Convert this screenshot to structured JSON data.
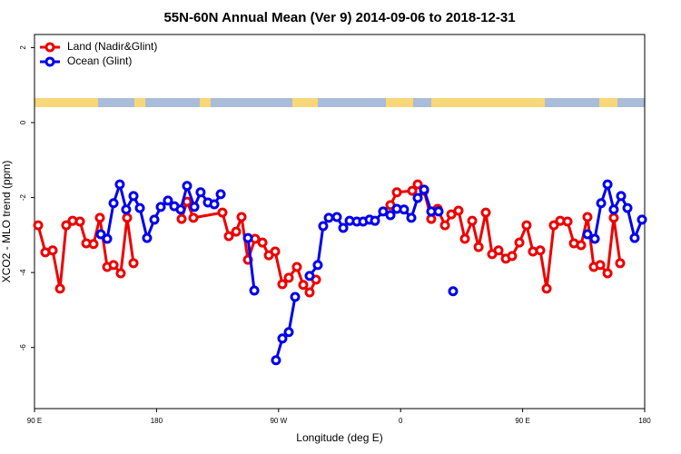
{
  "chart_data": {
    "type": "line",
    "title": "55N-60N Annual Mean (Ver 9)   2014-09-06 to 2018-12-31",
    "x_label": "Longitude (deg E)",
    "y_label": "XCO2 - MLO trend (ppm)",
    "xlim": [
      90,
      540
    ],
    "ylim": [
      -7.63,
      2.35
    ],
    "xticks": [
      {
        "value": 90,
        "label": "90 E"
      },
      180,
      {
        "value": 270,
        "label": "90 W"
      },
      {
        "value": 360,
        "label": "0"
      },
      {
        "value": 450,
        "label": "90 E"
      },
      {
        "value": 540,
        "label": "180"
      }
    ],
    "yticks": [
      -6,
      -4,
      -2,
      0,
      2
    ],
    "grid": false,
    "legend": "top-left",
    "series": [
      {
        "name": "Land (Nadir&Glint)",
        "color": "#ee0000",
        "x": [
          92.7,
          98.0,
          103.4,
          108.8,
          113.4,
          118.1,
          123.5,
          128.2,
          133.5,
          138.2,
          143.6,
          148.3,
          153.6,
          158.3,
          163.0,
          null,
          198.5,
          202.5,
          207.2,
          228.6,
          233.3,
          238.7,
          242.7,
          247.4,
          252.7,
          258.1,
          262.8,
          267.5,
          272.8,
          277.5,
          283.5,
          288.2,
          292.9,
          297.6,
          null,
          352.5,
          357.2,
          368.6,
          372.6,
          377.3,
          382.6,
          387.3,
          392.7,
          397.4,
          402.7,
          407.4,
          412.8,
          417.5,
          422.8,
          427.5,
          432.2,
          437.6,
          442.2,
          447.6,
          452.9,
          457.6,
          463.0,
          467.7,
          473.0,
          477.7,
          483.1,
          487.8,
          493.1,
          497.8,
          502.5,
          507.2,
          512.6,
          517.2,
          521.9
        ],
        "values": [
          -2.74,
          -3.46,
          -3.41,
          -4.43,
          -2.74,
          -2.62,
          -2.64,
          -3.22,
          -3.24,
          -2.54,
          -3.85,
          -3.8,
          -4.02,
          -2.54,
          -3.75,
          null,
          -2.57,
          -2.11,
          -2.54,
          -2.4,
          -3.03,
          -2.91,
          -2.52,
          -3.66,
          -3.1,
          -3.2,
          -3.54,
          -3.44,
          -4.31,
          -4.14,
          -3.85,
          -4.33,
          -4.53,
          -4.19,
          null,
          -2.2,
          -1.86,
          -1.82,
          -1.65,
          -1.82,
          -2.57,
          -2.3,
          -2.74,
          -2.45,
          -2.35,
          -3.1,
          -2.62,
          -3.32,
          -2.4,
          -3.51,
          -3.41,
          -3.63,
          -3.56,
          -3.2,
          -2.74,
          -3.44,
          -3.41,
          -4.43,
          -2.74,
          -2.62,
          -2.64,
          -3.22,
          -3.27,
          -2.52,
          -3.85,
          -3.8,
          -4.02,
          -2.54,
          -3.75
        ]
      },
      {
        "name": "Ocean (Glint)",
        "color": "#0000ee",
        "x": [
          138.9,
          143.6,
          148.3,
          152.9,
          157.6,
          163.0,
          167.7,
          173.0,
          178.4,
          183.1,
          188.4,
          193.1,
          197.8,
          202.5,
          207.9,
          212.5,
          217.9,
          222.6,
          227.3,
          null,
          247.4,
          252.1,
          null,
          268.1,
          272.8,
          277.5,
          282.2,
          null,
          292.9,
          298.9,
          302.9,
          307.0,
          313.0,
          317.7,
          322.4,
          327.7,
          332.4,
          337.1,
          341.1,
          347.1,
          352.5,
          357.2,
          362.5,
          367.9,
          372.6,
          377.3,
          382.6,
          388.0,
          null,
          398.7,
          null,
          497.8,
          503.2,
          507.9,
          512.6,
          517.2,
          522.6,
          527.3,
          532.6,
          538.0
        ],
        "values": [
          -2.98,
          -3.1,
          -2.15,
          -1.65,
          -2.32,
          -1.96,
          -2.28,
          -3.08,
          -2.59,
          -2.25,
          -2.08,
          -2.23,
          -2.32,
          -1.69,
          -2.25,
          -1.86,
          -2.13,
          -2.18,
          -1.91,
          null,
          -3.08,
          -4.48,
          null,
          -6.34,
          -5.76,
          -5.59,
          -4.65,
          null,
          -4.09,
          -3.8,
          -2.76,
          -2.54,
          -2.52,
          -2.81,
          -2.62,
          -2.64,
          -2.64,
          -2.59,
          -2.62,
          -2.37,
          -2.47,
          -2.3,
          -2.32,
          -2.54,
          -2.01,
          -1.79,
          -2.37,
          -2.37,
          null,
          -4.5,
          null,
          -2.98,
          -3.1,
          -2.15,
          -1.65,
          -2.32,
          -1.96,
          -2.28,
          -3.08,
          -2.59
        ]
      }
    ]
  }
}
